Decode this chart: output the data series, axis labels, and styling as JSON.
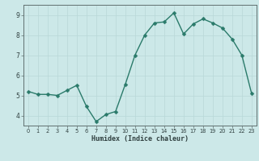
{
  "xlabel": "Humidex (Indice chaleur)",
  "x": [
    0,
    1,
    2,
    3,
    4,
    5,
    6,
    7,
    8,
    9,
    10,
    11,
    12,
    13,
    14,
    15,
    16,
    17,
    18,
    19,
    20,
    21,
    22,
    23
  ],
  "y": [
    5.2,
    5.05,
    5.05,
    5.0,
    5.25,
    5.5,
    4.45,
    3.7,
    4.05,
    4.2,
    5.55,
    7.0,
    8.0,
    8.6,
    8.65,
    9.1,
    8.05,
    8.55,
    8.8,
    8.6,
    8.35,
    7.8,
    7.0,
    5.1
  ],
  "ylim": [
    3.5,
    9.5
  ],
  "xlim": [
    -0.5,
    23.5
  ],
  "yticks": [
    4,
    5,
    6,
    7,
    8,
    9
  ],
  "xticks": [
    0,
    1,
    2,
    3,
    4,
    5,
    6,
    7,
    8,
    9,
    10,
    11,
    12,
    13,
    14,
    15,
    16,
    17,
    18,
    19,
    20,
    21,
    22,
    23
  ],
  "line_color": "#2a7a6a",
  "marker_color": "#2a7a6a",
  "bg_color": "#cce8e8",
  "grid_color": "#b8d8d8",
  "axis_color": "#607070",
  "tick_label_color": "#304040",
  "xlabel_color": "#304040",
  "line_width": 1.0,
  "marker_size": 2.5
}
